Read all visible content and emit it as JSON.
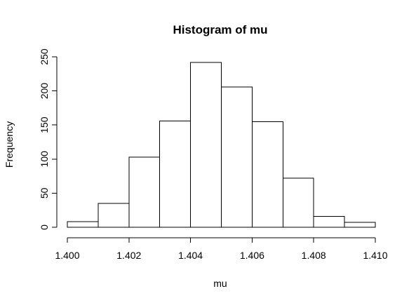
{
  "chart_data": {
    "type": "bar",
    "title": "Histogram of mu",
    "xlabel": "mu",
    "ylabel": "Frequency",
    "bins": [
      {
        "from": 1.4,
        "to": 1.401,
        "count": 8
      },
      {
        "from": 1.401,
        "to": 1.402,
        "count": 35
      },
      {
        "from": 1.402,
        "to": 1.403,
        "count": 103
      },
      {
        "from": 1.403,
        "to": 1.404,
        "count": 156
      },
      {
        "from": 1.404,
        "to": 1.405,
        "count": 242
      },
      {
        "from": 1.405,
        "to": 1.406,
        "count": 206
      },
      {
        "from": 1.406,
        "to": 1.407,
        "count": 155
      },
      {
        "from": 1.407,
        "to": 1.408,
        "count": 72
      },
      {
        "from": 1.408,
        "to": 1.409,
        "count": 16
      },
      {
        "from": 1.409,
        "to": 1.41,
        "count": 7
      }
    ],
    "xlim": [
      1.4,
      1.41
    ],
    "ylim": [
      0,
      250
    ],
    "x_ticks": [
      "1.400",
      "1.402",
      "1.404",
      "1.406",
      "1.408",
      "1.410"
    ],
    "y_ticks": [
      "0",
      "50",
      "100",
      "150",
      "200",
      "250"
    ],
    "grid": false,
    "colors": {
      "bar_fill": "#ffffff",
      "bar_stroke": "#000000"
    }
  }
}
